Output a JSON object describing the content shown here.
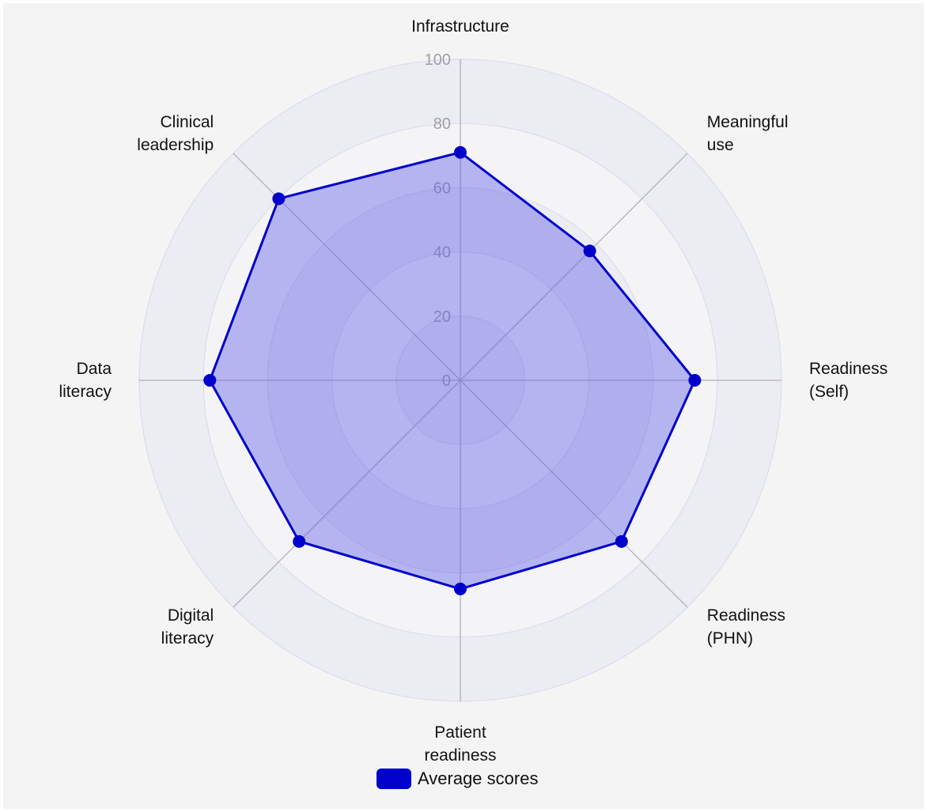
{
  "chart_data": {
    "type": "radar",
    "axes": [
      "Infrastructure",
      "Meaningful use",
      "Readiness (Self)",
      "Readiness (PHN)",
      "Patient readiness",
      "Digital literacy",
      "Data literacy",
      "Clinical leadership"
    ],
    "axis_label_lines": [
      [
        "Infrastructure"
      ],
      [
        "Meaningful",
        "use"
      ],
      [
        "Readiness",
        "(Self)"
      ],
      [
        "Readiness",
        "(PHN)"
      ],
      [
        "Patient",
        "readiness"
      ],
      [
        "Digital",
        "literacy"
      ],
      [
        "Data",
        "literacy"
      ],
      [
        "Clinical",
        "leadership"
      ]
    ],
    "series": [
      {
        "name": "Average scores",
        "values": [
          71,
          57,
          73,
          71,
          65,
          71,
          78,
          80
        ]
      }
    ],
    "rlim": [
      0,
      100
    ],
    "ticks": [
      "0",
      "20",
      "40",
      "60",
      "80",
      "100"
    ],
    "tick_values": [
      0,
      20,
      40,
      60,
      80,
      100
    ],
    "grid": true,
    "legend_position": "bottom",
    "colors": {
      "line": "#0000cc",
      "fill": "#5a5ae6",
      "fill_opacity": 0.42,
      "ring_even": "#ecedf2",
      "ring_odd": "#f4f4f6",
      "ring_stroke": "#dcdcee",
      "spoke": "#b0b0b6"
    }
  }
}
